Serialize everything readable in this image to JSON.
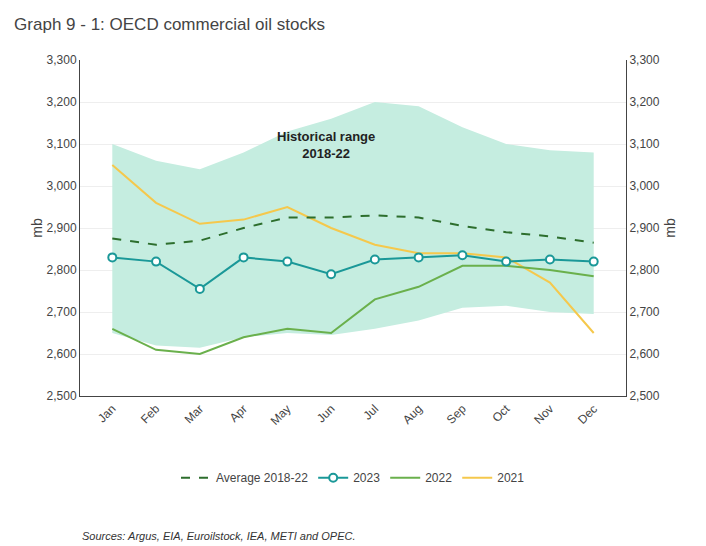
{
  "chart_data": {
    "type": "line",
    "title": "Graph 9 - 1: OECD commercial oil stocks",
    "ylabel": "mb",
    "y2label": "mb",
    "categories": [
      "Jan",
      "Feb",
      "Mar",
      "Apr",
      "May",
      "Jun",
      "Jul",
      "Aug",
      "Sep",
      "Oct",
      "Nov",
      "Dec"
    ],
    "series": [
      {
        "name": "2021",
        "color": "#f5c84c",
        "line_style": "solid",
        "values": [
          3050,
          2960,
          2910,
          2920,
          2950,
          2900,
          2860,
          2840,
          2840,
          2830,
          2770,
          2650
        ]
      },
      {
        "name": "2022",
        "color": "#6ab04c",
        "line_style": "solid",
        "values": [
          2660,
          2610,
          2600,
          2640,
          2660,
          2650,
          2730,
          2760,
          2810,
          2810,
          2800,
          2785
        ]
      },
      {
        "name": "2023",
        "color": "#1a9898",
        "line_style": "solid",
        "marker": "circle",
        "values": [
          2830,
          2820,
          2755,
          2830,
          2820,
          2790,
          2825,
          2830,
          2835,
          2820,
          2825,
          2820
        ]
      },
      {
        "name": "Average 2018-22",
        "color": "#2d6e2d",
        "line_style": "dash",
        "values": [
          2875,
          2860,
          2870,
          2900,
          2925,
          2925,
          2930,
          2925,
          2905,
          2890,
          2880,
          2865
        ]
      }
    ],
    "range": {
      "color": "#c5ede0",
      "lower": [
        2650,
        2620,
        2615,
        2640,
        2650,
        2645,
        2660,
        2680,
        2710,
        2715,
        2700,
        2695
      ],
      "upper": [
        3100,
        3060,
        3040,
        3080,
        3130,
        3160,
        3200,
        3190,
        3140,
        3100,
        3085,
        3080
      ]
    },
    "annotations": [
      "Historical range\n2018-22",
      "Sources: Argus, EIA, Euroilstock, IEA, METI and OPEC."
    ],
    "ylim": [
      2500,
      3300
    ],
    "yticks": [
      {
        "value": 2500,
        "label": "2,500"
      },
      {
        "value": 2600,
        "label": "2,600"
      },
      {
        "value": 2700,
        "label": "2,700"
      },
      {
        "value": 2800,
        "label": "2,800"
      },
      {
        "value": 2900,
        "label": "2,900"
      },
      {
        "value": 3000,
        "label": "3,000"
      },
      {
        "value": 3100,
        "label": "3,100"
      },
      {
        "value": 3200,
        "label": "3,200"
      },
      {
        "value": 3300,
        "label": "3,300"
      }
    ],
    "y2lim": [
      2500,
      3300
    ],
    "y2ticks": [
      {
        "value": 2500,
        "label": "2,500"
      },
      {
        "value": 2600,
        "label": "2,600"
      },
      {
        "value": 2700,
        "label": "2,700"
      },
      {
        "value": 2800,
        "label": "2,800"
      },
      {
        "value": 2900,
        "label": "2,900"
      },
      {
        "value": 3000,
        "label": "3,000"
      },
      {
        "value": 3100,
        "label": "3,100"
      },
      {
        "value": 3200,
        "label": "3,200"
      },
      {
        "value": 3300,
        "label": "3,300"
      }
    ],
    "grid": true,
    "legend": "bottom"
  }
}
